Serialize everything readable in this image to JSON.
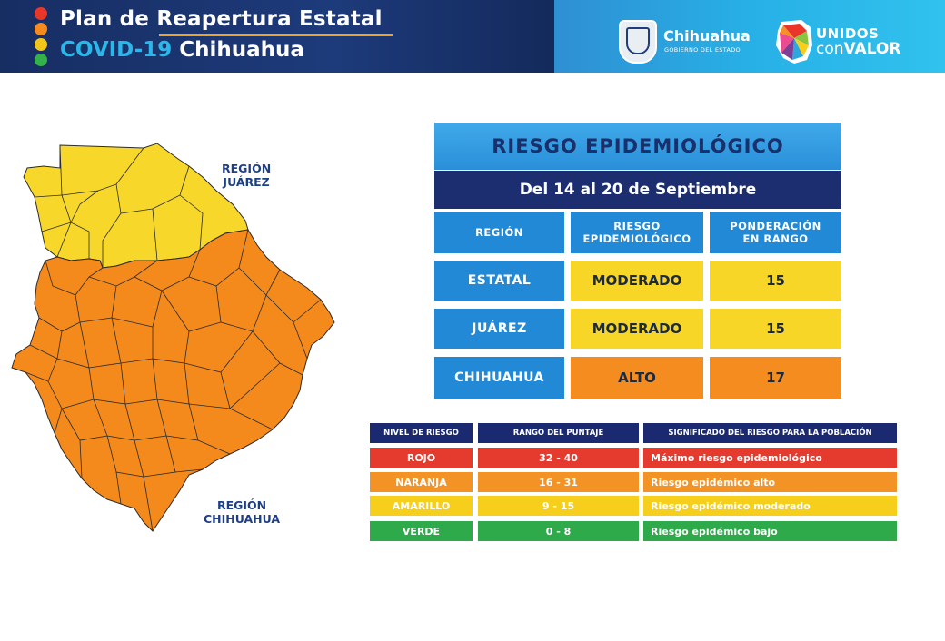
{
  "header": {
    "line1_part1": "Plan de ",
    "line1_part2": "Reapertura Estatal",
    "line2_part1": "COVID-19 ",
    "line2_part2": "Chihuahua",
    "traffic_lights": [
      "#e8362b",
      "#f58a1f",
      "#f3c61a",
      "#35b14b"
    ],
    "gov_name": "Chihuahua",
    "gov_sub": "GOBIERNO DEL ESTADO",
    "brand_line1": "UNIDOS",
    "brand_line2_a": "con",
    "brand_line2_b": "VALOR"
  },
  "map": {
    "region_juarez": [
      "REGIÓN",
      "JUÁREZ"
    ],
    "region_chihuahua": [
      "REGIÓN",
      "CHIHUAHUA"
    ],
    "colors": {
      "juarez": "#f7d72a",
      "chihuahua": "#f4891c",
      "borders": "#2b2b2b"
    }
  },
  "risk_table": {
    "title": "RIESGO EPIDEMIOLÓGICO",
    "dates": "Del 14 al 20 de Septiembre",
    "headers": [
      "REGIÓN",
      "RIESGO EPIDEMIOLÓGICO",
      "PONDERACIÓN EN RANGO"
    ],
    "rows": [
      {
        "region": "ESTATAL",
        "risk": "MODERADO",
        "score": "15",
        "color": "#f8d627"
      },
      {
        "region": "JUÁREZ",
        "risk": "MODERADO",
        "score": "15",
        "color": "#f8d627"
      },
      {
        "region": "CHIHUAHUA",
        "risk": "ALTO",
        "score": "17",
        "color": "#f58c1f"
      }
    ]
  },
  "legend": {
    "headers": [
      "NIVEL DE RIESGO",
      "RANGO DEL PUNTAJE",
      "SIGNIFICADO DEL RIESGO PARA LA POBLACIÓN"
    ],
    "rows": [
      {
        "level": "ROJO",
        "range": "32 - 40",
        "meaning": "Máximo riesgo epidemiológico",
        "color": "#e53a2e"
      },
      {
        "level": "NARANJA",
        "range": "16 - 31",
        "meaning": "Riesgo epidémico alto",
        "color": "#f39325"
      },
      {
        "level": "AMARILLO",
        "range": "9 - 15",
        "meaning": "Riesgo epidémico moderado",
        "color": "#f6cf1c"
      },
      {
        "level": "VERDE",
        "range": "0 - 8",
        "meaning": "Riesgo epidémico bajo",
        "color": "#2faa4a"
      }
    ]
  }
}
